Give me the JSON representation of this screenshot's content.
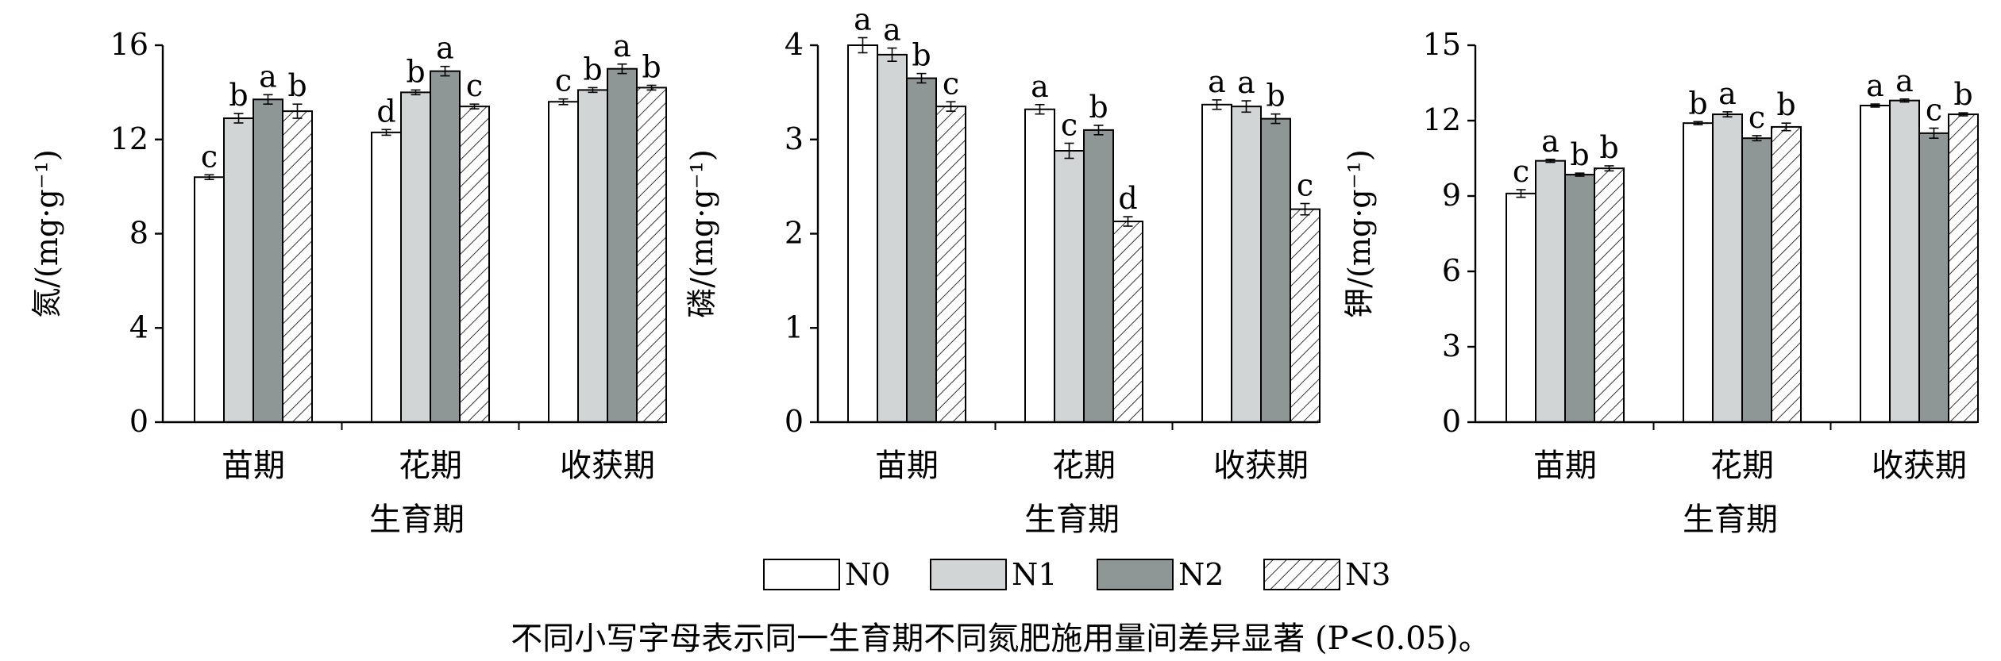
{
  "legend": [
    {
      "label": "N0",
      "fill": "white"
    },
    {
      "label": "N1",
      "fill": "#d2d5d5"
    },
    {
      "label": "N2",
      "fill": "#8e9696"
    },
    {
      "label": "N3",
      "fill": "hatch"
    }
  ],
  "caption": "不同小写字母表示同一生育期不同氮肥施用量间差异显著 (P<0.05)。",
  "colors": {
    "N0": "#ffffff",
    "N1": "#d2d5d5",
    "N2": "#8e9696",
    "N3": "#ffffff",
    "axis": "#000000"
  },
  "chart_data": [
    {
      "type": "bar",
      "title": "",
      "xlabel": "生育期",
      "ylabel": "氮/(mg·g⁻¹)",
      "ylim": [
        0,
        16
      ],
      "yticks": [
        "0",
        "4",
        "8",
        "12",
        "16"
      ],
      "categories": [
        "苗期",
        "花期",
        "收获期"
      ],
      "series": [
        {
          "name": "N0",
          "values": [
            10.4,
            12.3,
            13.6
          ],
          "errors": [
            0.1,
            0.12,
            0.12
          ],
          "letters": [
            "c",
            "d",
            "c"
          ]
        },
        {
          "name": "N1",
          "values": [
            12.9,
            14.0,
            14.1
          ],
          "errors": [
            0.2,
            0.1,
            0.1
          ],
          "letters": [
            "b",
            "b",
            "b"
          ]
        },
        {
          "name": "N2",
          "values": [
            13.7,
            14.9,
            15.0
          ],
          "errors": [
            0.2,
            0.2,
            0.2
          ],
          "letters": [
            "a",
            "a",
            "a"
          ]
        },
        {
          "name": "N3",
          "values": [
            13.2,
            13.4,
            14.2
          ],
          "errors": [
            0.3,
            0.1,
            0.1
          ],
          "letters": [
            "b",
            "c",
            "b"
          ]
        }
      ]
    },
    {
      "type": "bar",
      "title": "",
      "xlabel": "生育期",
      "ylabel": "磷/(mg·g⁻¹)",
      "ylim": [
        0,
        4
      ],
      "yticks": [
        "0",
        "1",
        "2",
        "3",
        "4"
      ],
      "categories": [
        "苗期",
        "花期",
        "收获期"
      ],
      "series": [
        {
          "name": "N0",
          "values": [
            4.0,
            3.32,
            3.37
          ],
          "errors": [
            0.08,
            0.05,
            0.05
          ],
          "letters": [
            "a",
            "a",
            "a"
          ]
        },
        {
          "name": "N1",
          "values": [
            3.9,
            2.88,
            3.35
          ],
          "errors": [
            0.07,
            0.08,
            0.06
          ],
          "letters": [
            "a",
            "c",
            "a"
          ]
        },
        {
          "name": "N2",
          "values": [
            3.65,
            3.1,
            3.22
          ],
          "errors": [
            0.05,
            0.05,
            0.05
          ],
          "letters": [
            "b",
            "b",
            "b"
          ]
        },
        {
          "name": "N3",
          "values": [
            3.35,
            2.13,
            2.26
          ],
          "errors": [
            0.05,
            0.05,
            0.06
          ],
          "letters": [
            "c",
            "d",
            "c"
          ]
        }
      ]
    },
    {
      "type": "bar",
      "title": "",
      "xlabel": "生育期",
      "ylabel": "钾/(mg·g⁻¹)",
      "ylim": [
        0,
        15
      ],
      "yticks": [
        "0",
        "3",
        "6",
        "9",
        "12",
        "15"
      ],
      "categories": [
        "苗期",
        "花期",
        "收获期"
      ],
      "series": [
        {
          "name": "N0",
          "values": [
            9.1,
            11.9,
            12.6
          ],
          "errors": [
            0.15,
            0.06,
            0.06
          ],
          "letters": [
            "c",
            "b",
            "a"
          ]
        },
        {
          "name": "N1",
          "values": [
            10.4,
            12.25,
            12.8
          ],
          "errors": [
            0.06,
            0.1,
            0.06
          ],
          "letters": [
            "a",
            "a",
            "a"
          ]
        },
        {
          "name": "N2",
          "values": [
            9.85,
            11.3,
            11.5
          ],
          "errors": [
            0.06,
            0.1,
            0.2
          ],
          "letters": [
            "b",
            "c",
            "c"
          ]
        },
        {
          "name": "N3",
          "values": [
            10.1,
            11.75,
            12.25
          ],
          "errors": [
            0.1,
            0.15,
            0.06
          ],
          "letters": [
            "b",
            "b",
            "b"
          ]
        }
      ]
    }
  ]
}
